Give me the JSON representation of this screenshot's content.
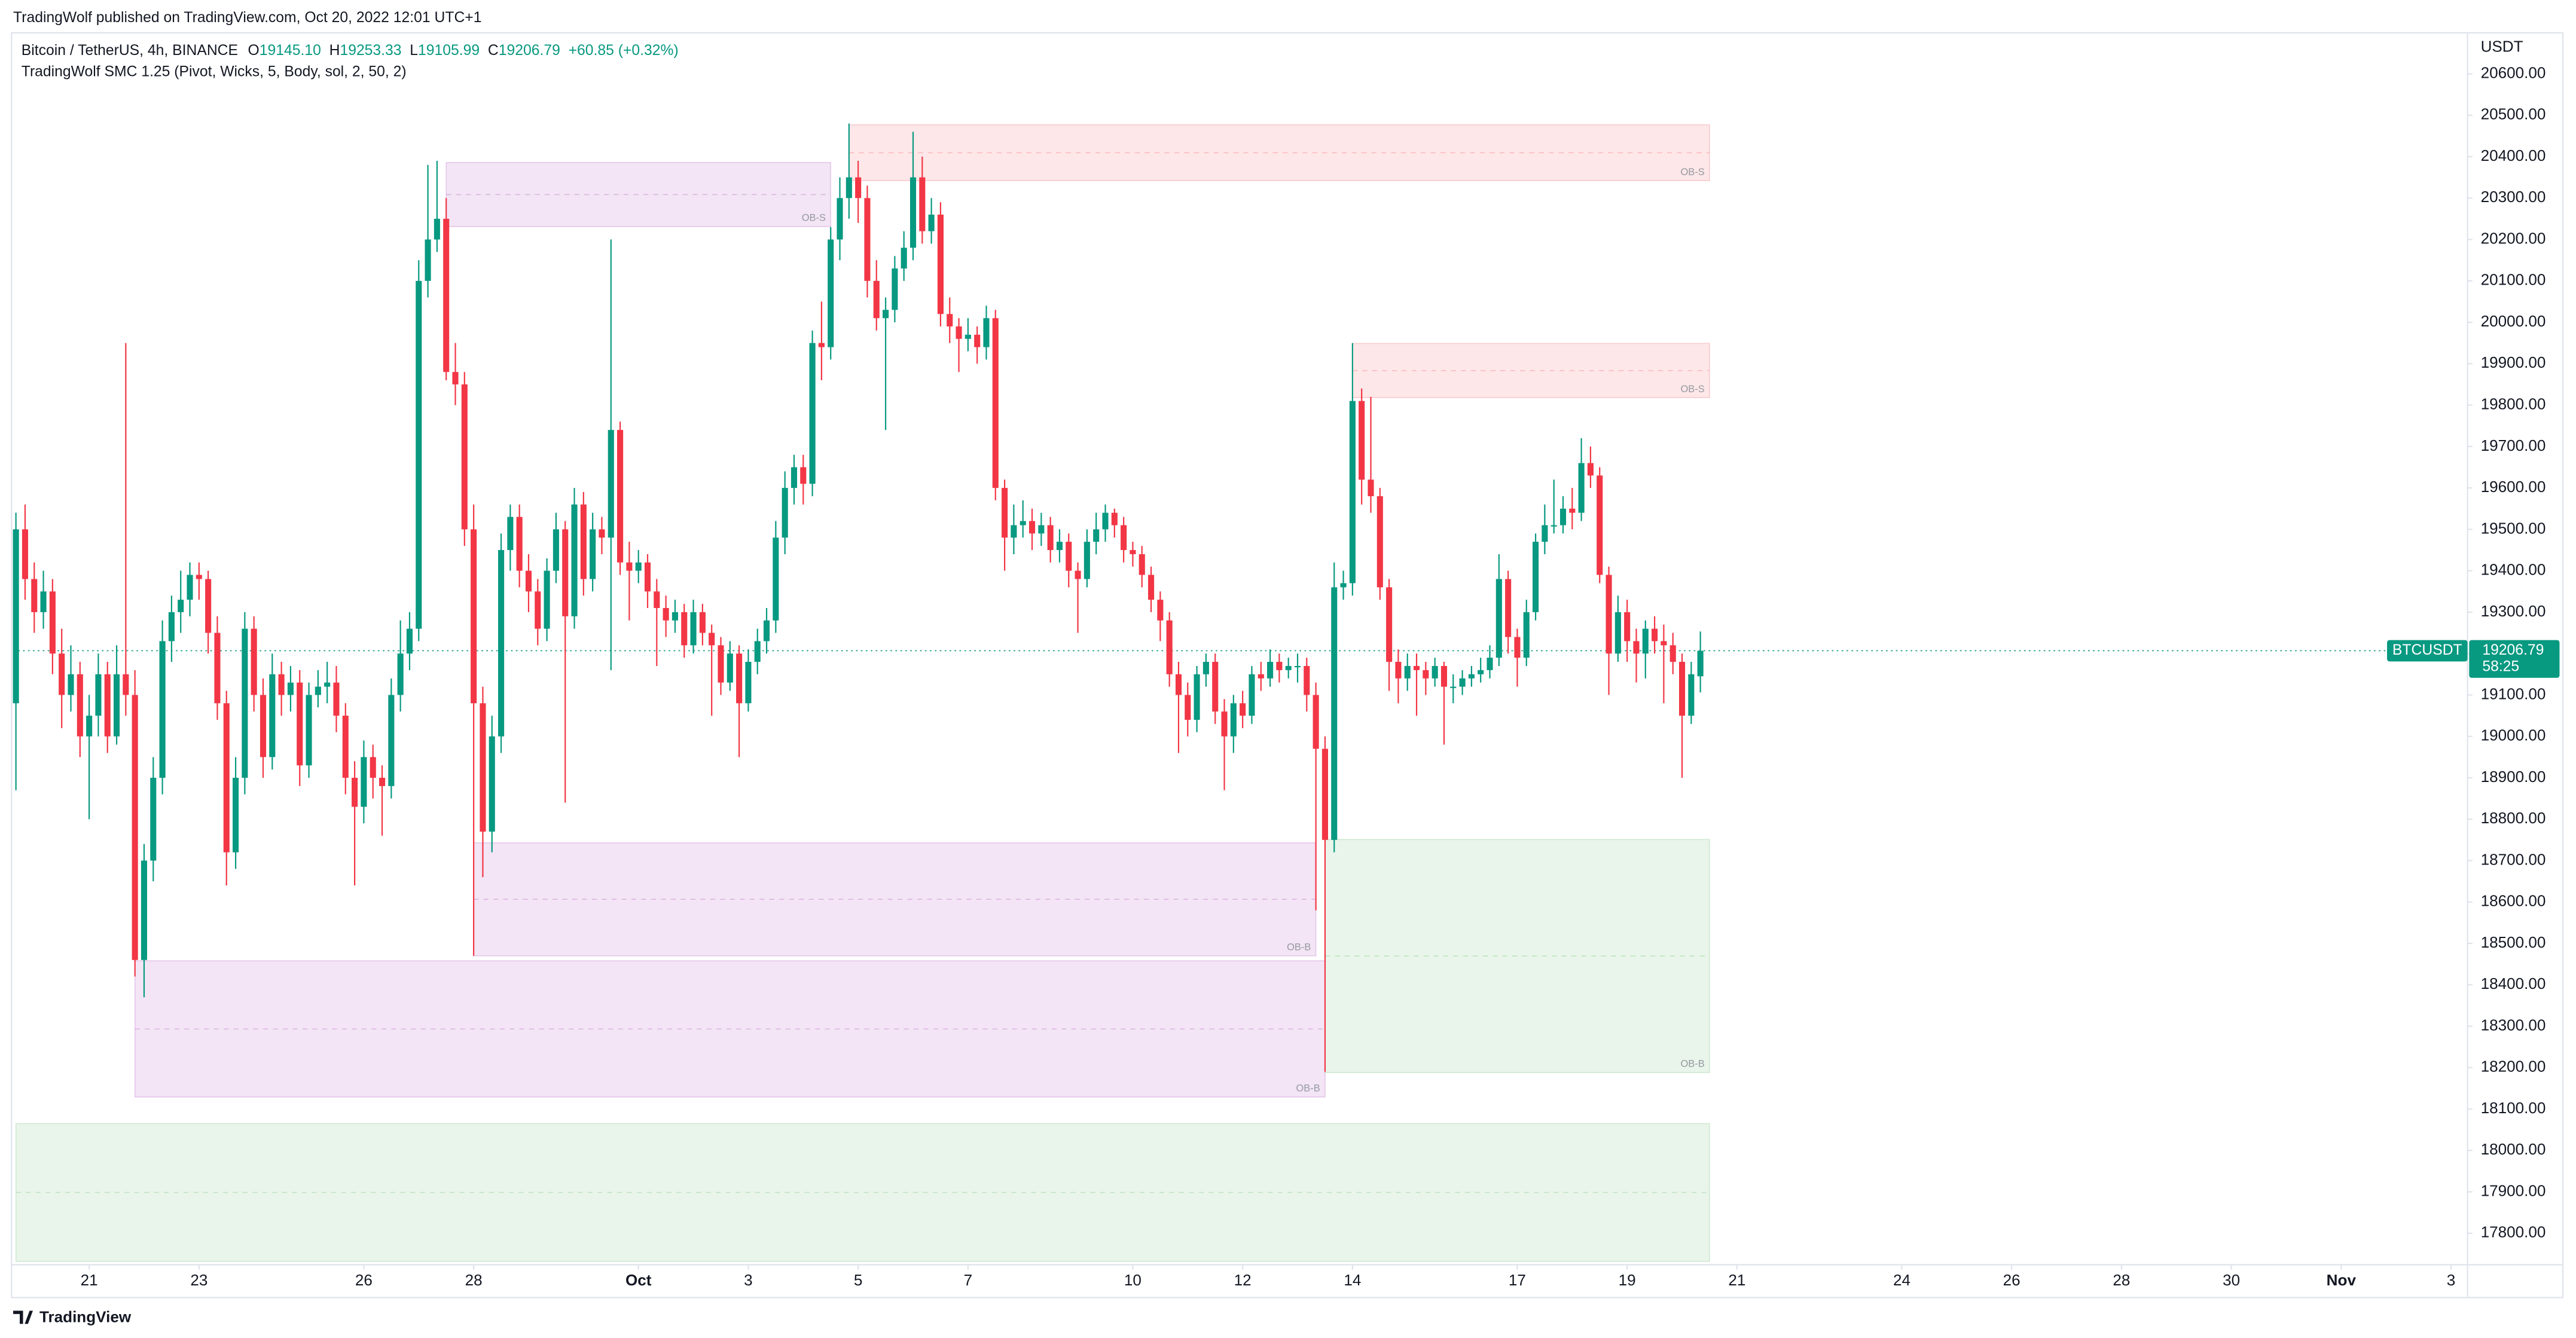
{
  "header": {
    "publisher": "TradingWolf published on TradingView.com, Oct 20, 2022 12:01 UTC+1"
  },
  "legend": {
    "symbol": "Bitcoin / TetherUS, 4h, BINANCE",
    "readout": [
      {
        "key": "O",
        "value": "19145.10"
      },
      {
        "key": "H",
        "value": "19253.33"
      },
      {
        "key": "L",
        "value": "19105.99"
      },
      {
        "key": "C",
        "value": "19206.79"
      }
    ],
    "change": "+60.85 (+0.32%)",
    "indicator": "TradingWolf SMC 1.25 (Pivot, Wicks, 5, Body, sol, 2, 50, 2)"
  },
  "footer": {
    "logo": "TradingView"
  },
  "chart_data": {
    "type": "candlestick",
    "y_unit": "USDT",
    "up_color": "#089981",
    "down_color": "#f23645",
    "xlim": [
      -0.3,
      267.8
    ],
    "ylim": [
      17724,
      20699
    ],
    "xticks": [
      {
        "value": 8,
        "label": "21"
      },
      {
        "value": 20,
        "label": "23"
      },
      {
        "value": 38,
        "label": "26"
      },
      {
        "value": 50,
        "label": "28"
      },
      {
        "value": 68,
        "label": "Oct"
      },
      {
        "value": 80,
        "label": "3"
      },
      {
        "value": 92,
        "label": "5"
      },
      {
        "value": 104,
        "label": "7"
      },
      {
        "value": 122,
        "label": "10"
      },
      {
        "value": 134,
        "label": "12"
      },
      {
        "value": 146,
        "label": "14"
      },
      {
        "value": 164,
        "label": "17"
      },
      {
        "value": 176,
        "label": "19"
      },
      {
        "value": 188,
        "label": "21"
      },
      {
        "value": 206,
        "label": "24"
      },
      {
        "value": 218,
        "label": "26"
      },
      {
        "value": 230,
        "label": "28"
      },
      {
        "value": 242,
        "label": "30"
      },
      {
        "value": 254,
        "label": "Nov"
      },
      {
        "value": 266,
        "label": "3"
      }
    ],
    "yticks": [
      {
        "value": 17800,
        "label": "17800.00"
      },
      {
        "value": 17900,
        "label": "17900.00"
      },
      {
        "value": 18000,
        "label": "18000.00"
      },
      {
        "value": 18100,
        "label": "18100.00"
      },
      {
        "value": 18200,
        "label": "18200.00"
      },
      {
        "value": 18300,
        "label": "18300.00"
      },
      {
        "value": 18400,
        "label": "18400.00"
      },
      {
        "value": 18500,
        "label": "18500.00"
      },
      {
        "value": 18600,
        "label": "18600.00"
      },
      {
        "value": 18700,
        "label": "18700.00"
      },
      {
        "value": 18800,
        "label": "18800.00"
      },
      {
        "value": 18900,
        "label": "18900.00"
      },
      {
        "value": 19000,
        "label": "19000.00"
      },
      {
        "value": 19100,
        "label": "19100.00"
      },
      {
        "value": 19200,
        "label": "19200.00"
      },
      {
        "value": 19300,
        "label": "19300.00"
      },
      {
        "value": 19400,
        "label": "19400.00"
      },
      {
        "value": 19500,
        "label": "19500.00"
      },
      {
        "value": 19600,
        "label": "19600.00"
      },
      {
        "value": 19700,
        "label": "19700.00"
      },
      {
        "value": 19800,
        "label": "19800.00"
      },
      {
        "value": 19900,
        "label": "19900.00"
      },
      {
        "value": 20000,
        "label": "20000.00"
      },
      {
        "value": 20100,
        "label": "20100.00"
      },
      {
        "value": 20200,
        "label": "20200.00"
      },
      {
        "value": 20300,
        "label": "20300.00"
      },
      {
        "value": 20400,
        "label": "20400.00"
      },
      {
        "value": 20500,
        "label": "20500.00"
      },
      {
        "value": 20600,
        "label": "20600.00"
      }
    ],
    "last_price": 19206.79,
    "symbol_tag": "BTCUSDT",
    "countdown": "58:25",
    "zones": [
      {
        "start": 47,
        "end": 89,
        "top": 20386,
        "bottom": 20231,
        "color": "#9c27b0",
        "label": "OB-S"
      },
      {
        "start": 91,
        "end": 185,
        "top": 20477,
        "bottom": 20342,
        "color": "#f23645",
        "label": "OB-S"
      },
      {
        "start": 146,
        "end": 185,
        "top": 19949,
        "bottom": 19818,
        "color": "#f23645",
        "label": "OB-S"
      },
      {
        "start": 50,
        "end": 142,
        "top": 18743,
        "bottom": 18470,
        "color": "#9c27b0",
        "label": "OB-B"
      },
      {
        "start": 13,
        "end": 143,
        "top": 18458,
        "bottom": 18129,
        "color": "#9c27b0",
        "label": "OB-B"
      },
      {
        "start": 143,
        "end": 185,
        "top": 18751,
        "bottom": 18188,
        "color": "#4caf50",
        "label": "OB-B"
      },
      {
        "start": 0,
        "end": 185,
        "top": 18065,
        "bottom": 17732,
        "color": "#4caf50"
      }
    ],
    "values": [
      [
        19080,
        19540,
        18870,
        19500
      ],
      [
        19500,
        19560,
        19330,
        19380
      ],
      [
        19380,
        19420,
        19250,
        19300
      ],
      [
        19300,
        19400,
        19260,
        19350
      ],
      [
        19350,
        19380,
        19150,
        19200
      ],
      [
        19200,
        19260,
        19020,
        19100
      ],
      [
        19100,
        19220,
        19060,
        19150
      ],
      [
        19150,
        19180,
        18950,
        19000
      ],
      [
        19000,
        19100,
        18800,
        19050
      ],
      [
        19050,
        19200,
        19000,
        19150
      ],
      [
        19150,
        19180,
        18960,
        19000
      ],
      [
        19000,
        19220,
        18980,
        19150
      ],
      [
        19150,
        19950,
        19050,
        19100
      ],
      [
        19100,
        19160,
        18420,
        18460
      ],
      [
        18460,
        18740,
        18370,
        18700
      ],
      [
        18700,
        18950,
        18650,
        18900
      ],
      [
        18900,
        19280,
        18860,
        19230
      ],
      [
        19230,
        19340,
        19180,
        19300
      ],
      [
        19300,
        19400,
        19250,
        19330
      ],
      [
        19330,
        19420,
        19290,
        19390
      ],
      [
        19390,
        19420,
        19330,
        19380
      ],
      [
        19380,
        19400,
        19200,
        19250
      ],
      [
        19250,
        19290,
        19040,
        19080
      ],
      [
        19080,
        19110,
        18640,
        18720
      ],
      [
        18720,
        18950,
        18680,
        18900
      ],
      [
        18900,
        19300,
        18860,
        19260
      ],
      [
        19260,
        19290,
        19060,
        19100
      ],
      [
        19100,
        19140,
        18900,
        18950
      ],
      [
        18950,
        19200,
        18920,
        19150
      ],
      [
        19150,
        19180,
        19050,
        19100
      ],
      [
        19100,
        19170,
        19060,
        19130
      ],
      [
        19130,
        19160,
        18880,
        18930
      ],
      [
        18930,
        19130,
        18900,
        19100
      ],
      [
        19100,
        19160,
        19070,
        19120
      ],
      [
        19120,
        19180,
        19080,
        19130
      ],
      [
        19130,
        19170,
        19010,
        19050
      ],
      [
        19050,
        19080,
        18860,
        18900
      ],
      [
        18900,
        18940,
        18640,
        18830
      ],
      [
        18830,
        18990,
        18790,
        18950
      ],
      [
        18950,
        18980,
        18850,
        18900
      ],
      [
        18900,
        18930,
        18760,
        18880
      ],
      [
        18880,
        19140,
        18850,
        19100
      ],
      [
        19100,
        19280,
        19060,
        19200
      ],
      [
        19200,
        19300,
        19160,
        19260
      ],
      [
        19260,
        20150,
        19230,
        20100
      ],
      [
        20100,
        20380,
        20060,
        20200
      ],
      [
        20200,
        20390,
        20170,
        20250
      ],
      [
        20250,
        20300,
        19860,
        19880
      ],
      [
        19880,
        19950,
        19800,
        19850
      ],
      [
        19850,
        19880,
        19460,
        19500
      ],
      [
        19500,
        19560,
        18470,
        19080
      ],
      [
        19080,
        19120,
        18660,
        18770
      ],
      [
        18770,
        19050,
        18720,
        19000
      ],
      [
        19000,
        19490,
        18960,
        19450
      ],
      [
        19450,
        19560,
        19400,
        19530
      ],
      [
        19530,
        19560,
        19360,
        19400
      ],
      [
        19400,
        19440,
        19300,
        19350
      ],
      [
        19350,
        19380,
        19220,
        19260
      ],
      [
        19260,
        19430,
        19230,
        19400
      ],
      [
        19400,
        19540,
        19370,
        19500
      ],
      [
        19500,
        19520,
        18840,
        19290
      ],
      [
        19290,
        19600,
        19260,
        19560
      ],
      [
        19560,
        19590,
        19340,
        19380
      ],
      [
        19380,
        19540,
        19350,
        19500
      ],
      [
        19500,
        19530,
        19440,
        19480
      ],
      [
        19480,
        20200,
        19160,
        19740
      ],
      [
        19740,
        19760,
        19390,
        19420
      ],
      [
        19420,
        19470,
        19280,
        19400
      ],
      [
        19400,
        19450,
        19370,
        19420
      ],
      [
        19420,
        19440,
        19310,
        19350
      ],
      [
        19350,
        19380,
        19170,
        19310
      ],
      [
        19310,
        19340,
        19240,
        19280
      ],
      [
        19280,
        19330,
        19250,
        19300
      ],
      [
        19300,
        19320,
        19190,
        19220
      ],
      [
        19220,
        19330,
        19200,
        19300
      ],
      [
        19300,
        19320,
        19220,
        19250
      ],
      [
        19250,
        19270,
        19050,
        19220
      ],
      [
        19220,
        19240,
        19100,
        19130
      ],
      [
        19130,
        19230,
        19110,
        19200
      ],
      [
        19200,
        19220,
        18950,
        19080
      ],
      [
        19080,
        19210,
        19060,
        19180
      ],
      [
        19180,
        19260,
        19150,
        19230
      ],
      [
        19230,
        19310,
        19200,
        19280
      ],
      [
        19280,
        19520,
        19250,
        19480
      ],
      [
        19480,
        19640,
        19440,
        19600
      ],
      [
        19600,
        19680,
        19560,
        19650
      ],
      [
        19650,
        19680,
        19560,
        19610
      ],
      [
        19610,
        19980,
        19580,
        19950
      ],
      [
        19950,
        20050,
        19860,
        19940
      ],
      [
        19940,
        20230,
        19910,
        20200
      ],
      [
        20200,
        20350,
        20150,
        20300
      ],
      [
        20300,
        20480,
        20250,
        20350
      ],
      [
        20350,
        20390,
        20240,
        20300
      ],
      [
        20300,
        20330,
        20060,
        20100
      ],
      [
        20100,
        20150,
        19980,
        20010
      ],
      [
        20010,
        20060,
        19740,
        20030
      ],
      [
        20030,
        20160,
        20000,
        20130
      ],
      [
        20130,
        20220,
        20100,
        20180
      ],
      [
        20180,
        20460,
        20150,
        20350
      ],
      [
        20350,
        20400,
        20190,
        20220
      ],
      [
        20220,
        20300,
        20190,
        20260
      ],
      [
        20260,
        20290,
        19990,
        20020
      ],
      [
        20020,
        20060,
        19950,
        19990
      ],
      [
        19990,
        20010,
        19880,
        19960
      ],
      [
        19960,
        20010,
        19930,
        19970
      ],
      [
        19970,
        19990,
        19900,
        19940
      ],
      [
        19940,
        20040,
        19910,
        20010
      ],
      [
        20010,
        20030,
        19570,
        19600
      ],
      [
        19600,
        19620,
        19400,
        19480
      ],
      [
        19480,
        19560,
        19440,
        19510
      ],
      [
        19510,
        19570,
        19480,
        19520
      ],
      [
        19520,
        19550,
        19450,
        19490
      ],
      [
        19490,
        19540,
        19460,
        19510
      ],
      [
        19510,
        19530,
        19420,
        19450
      ],
      [
        19450,
        19500,
        19420,
        19470
      ],
      [
        19470,
        19490,
        19360,
        19400
      ],
      [
        19400,
        19420,
        19250,
        19380
      ],
      [
        19380,
        19500,
        19360,
        19470
      ],
      [
        19470,
        19540,
        19440,
        19500
      ],
      [
        19500,
        19560,
        19470,
        19540
      ],
      [
        19540,
        19550,
        19480,
        19510
      ],
      [
        19510,
        19530,
        19420,
        19450
      ],
      [
        19450,
        19470,
        19410,
        19440
      ],
      [
        19440,
        19460,
        19360,
        19390
      ],
      [
        19390,
        19410,
        19300,
        19330
      ],
      [
        19330,
        19350,
        19230,
        19280
      ],
      [
        19280,
        19300,
        19120,
        19150
      ],
      [
        19150,
        19180,
        18960,
        19100
      ],
      [
        19100,
        19130,
        19000,
        19040
      ],
      [
        19040,
        19170,
        19010,
        19150
      ],
      [
        19150,
        19200,
        19120,
        19180
      ],
      [
        19180,
        19200,
        19030,
        19060
      ],
      [
        19060,
        19090,
        18870,
        19000
      ],
      [
        19000,
        19100,
        18960,
        19080
      ],
      [
        19080,
        19110,
        19020,
        19050
      ],
      [
        19050,
        19170,
        19030,
        19150
      ],
      [
        19150,
        19180,
        19110,
        19140
      ],
      [
        19140,
        19210,
        19120,
        19180
      ],
      [
        19180,
        19200,
        19130,
        19160
      ],
      [
        19160,
        19190,
        19140,
        19170
      ],
      [
        19170,
        19200,
        19130,
        19170
      ],
      [
        19170,
        19190,
        19060,
        19100
      ],
      [
        19100,
        19130,
        18580,
        18970
      ],
      [
        18970,
        19000,
        18190,
        18750
      ],
      [
        18750,
        19420,
        18720,
        19360
      ],
      [
        19360,
        19400,
        19330,
        19370
      ],
      [
        19370,
        19950,
        19340,
        19810
      ],
      [
        19810,
        19840,
        19560,
        19620
      ],
      [
        19620,
        19820,
        19540,
        19580
      ],
      [
        19580,
        19600,
        19330,
        19360
      ],
      [
        19360,
        19380,
        19110,
        19180
      ],
      [
        19180,
        19210,
        19080,
        19140
      ],
      [
        19140,
        19200,
        19110,
        19170
      ],
      [
        19170,
        19200,
        19050,
        19160
      ],
      [
        19160,
        19180,
        19100,
        19140
      ],
      [
        19140,
        19190,
        19120,
        19170
      ],
      [
        19170,
        19180,
        18980,
        19120
      ],
      [
        19120,
        19150,
        19080,
        19120
      ],
      [
        19120,
        19160,
        19100,
        19140
      ],
      [
        19140,
        19170,
        19120,
        19150
      ],
      [
        19150,
        19190,
        19130,
        19160
      ],
      [
        19160,
        19220,
        19140,
        19190
      ],
      [
        19190,
        19440,
        19170,
        19380
      ],
      [
        19380,
        19400,
        19200,
        19240
      ],
      [
        19240,
        19260,
        19120,
        19190
      ],
      [
        19190,
        19330,
        19170,
        19300
      ],
      [
        19300,
        19490,
        19280,
        19470
      ],
      [
        19470,
        19560,
        19440,
        19510
      ],
      [
        19510,
        19620,
        19490,
        19510
      ],
      [
        19510,
        19580,
        19490,
        19550
      ],
      [
        19550,
        19600,
        19500,
        19540
      ],
      [
        19540,
        19720,
        19520,
        19660
      ],
      [
        19660,
        19700,
        19600,
        19630
      ],
      [
        19630,
        19650,
        19370,
        19390
      ],
      [
        19390,
        19410,
        19100,
        19200
      ],
      [
        19200,
        19340,
        19180,
        19300
      ],
      [
        19300,
        19330,
        19180,
        19230
      ],
      [
        19230,
        19260,
        19130,
        19200
      ],
      [
        19200,
        19280,
        19140,
        19260
      ],
      [
        19260,
        19290,
        19200,
        19230
      ],
      [
        19230,
        19270,
        19080,
        19220
      ],
      [
        19220,
        19250,
        19150,
        19180
      ],
      [
        19180,
        19200,
        18900,
        19050
      ],
      [
        19050,
        19180,
        19030,
        19150
      ],
      [
        19145.1,
        19253.33,
        19105.99,
        19206.79
      ]
    ]
  }
}
